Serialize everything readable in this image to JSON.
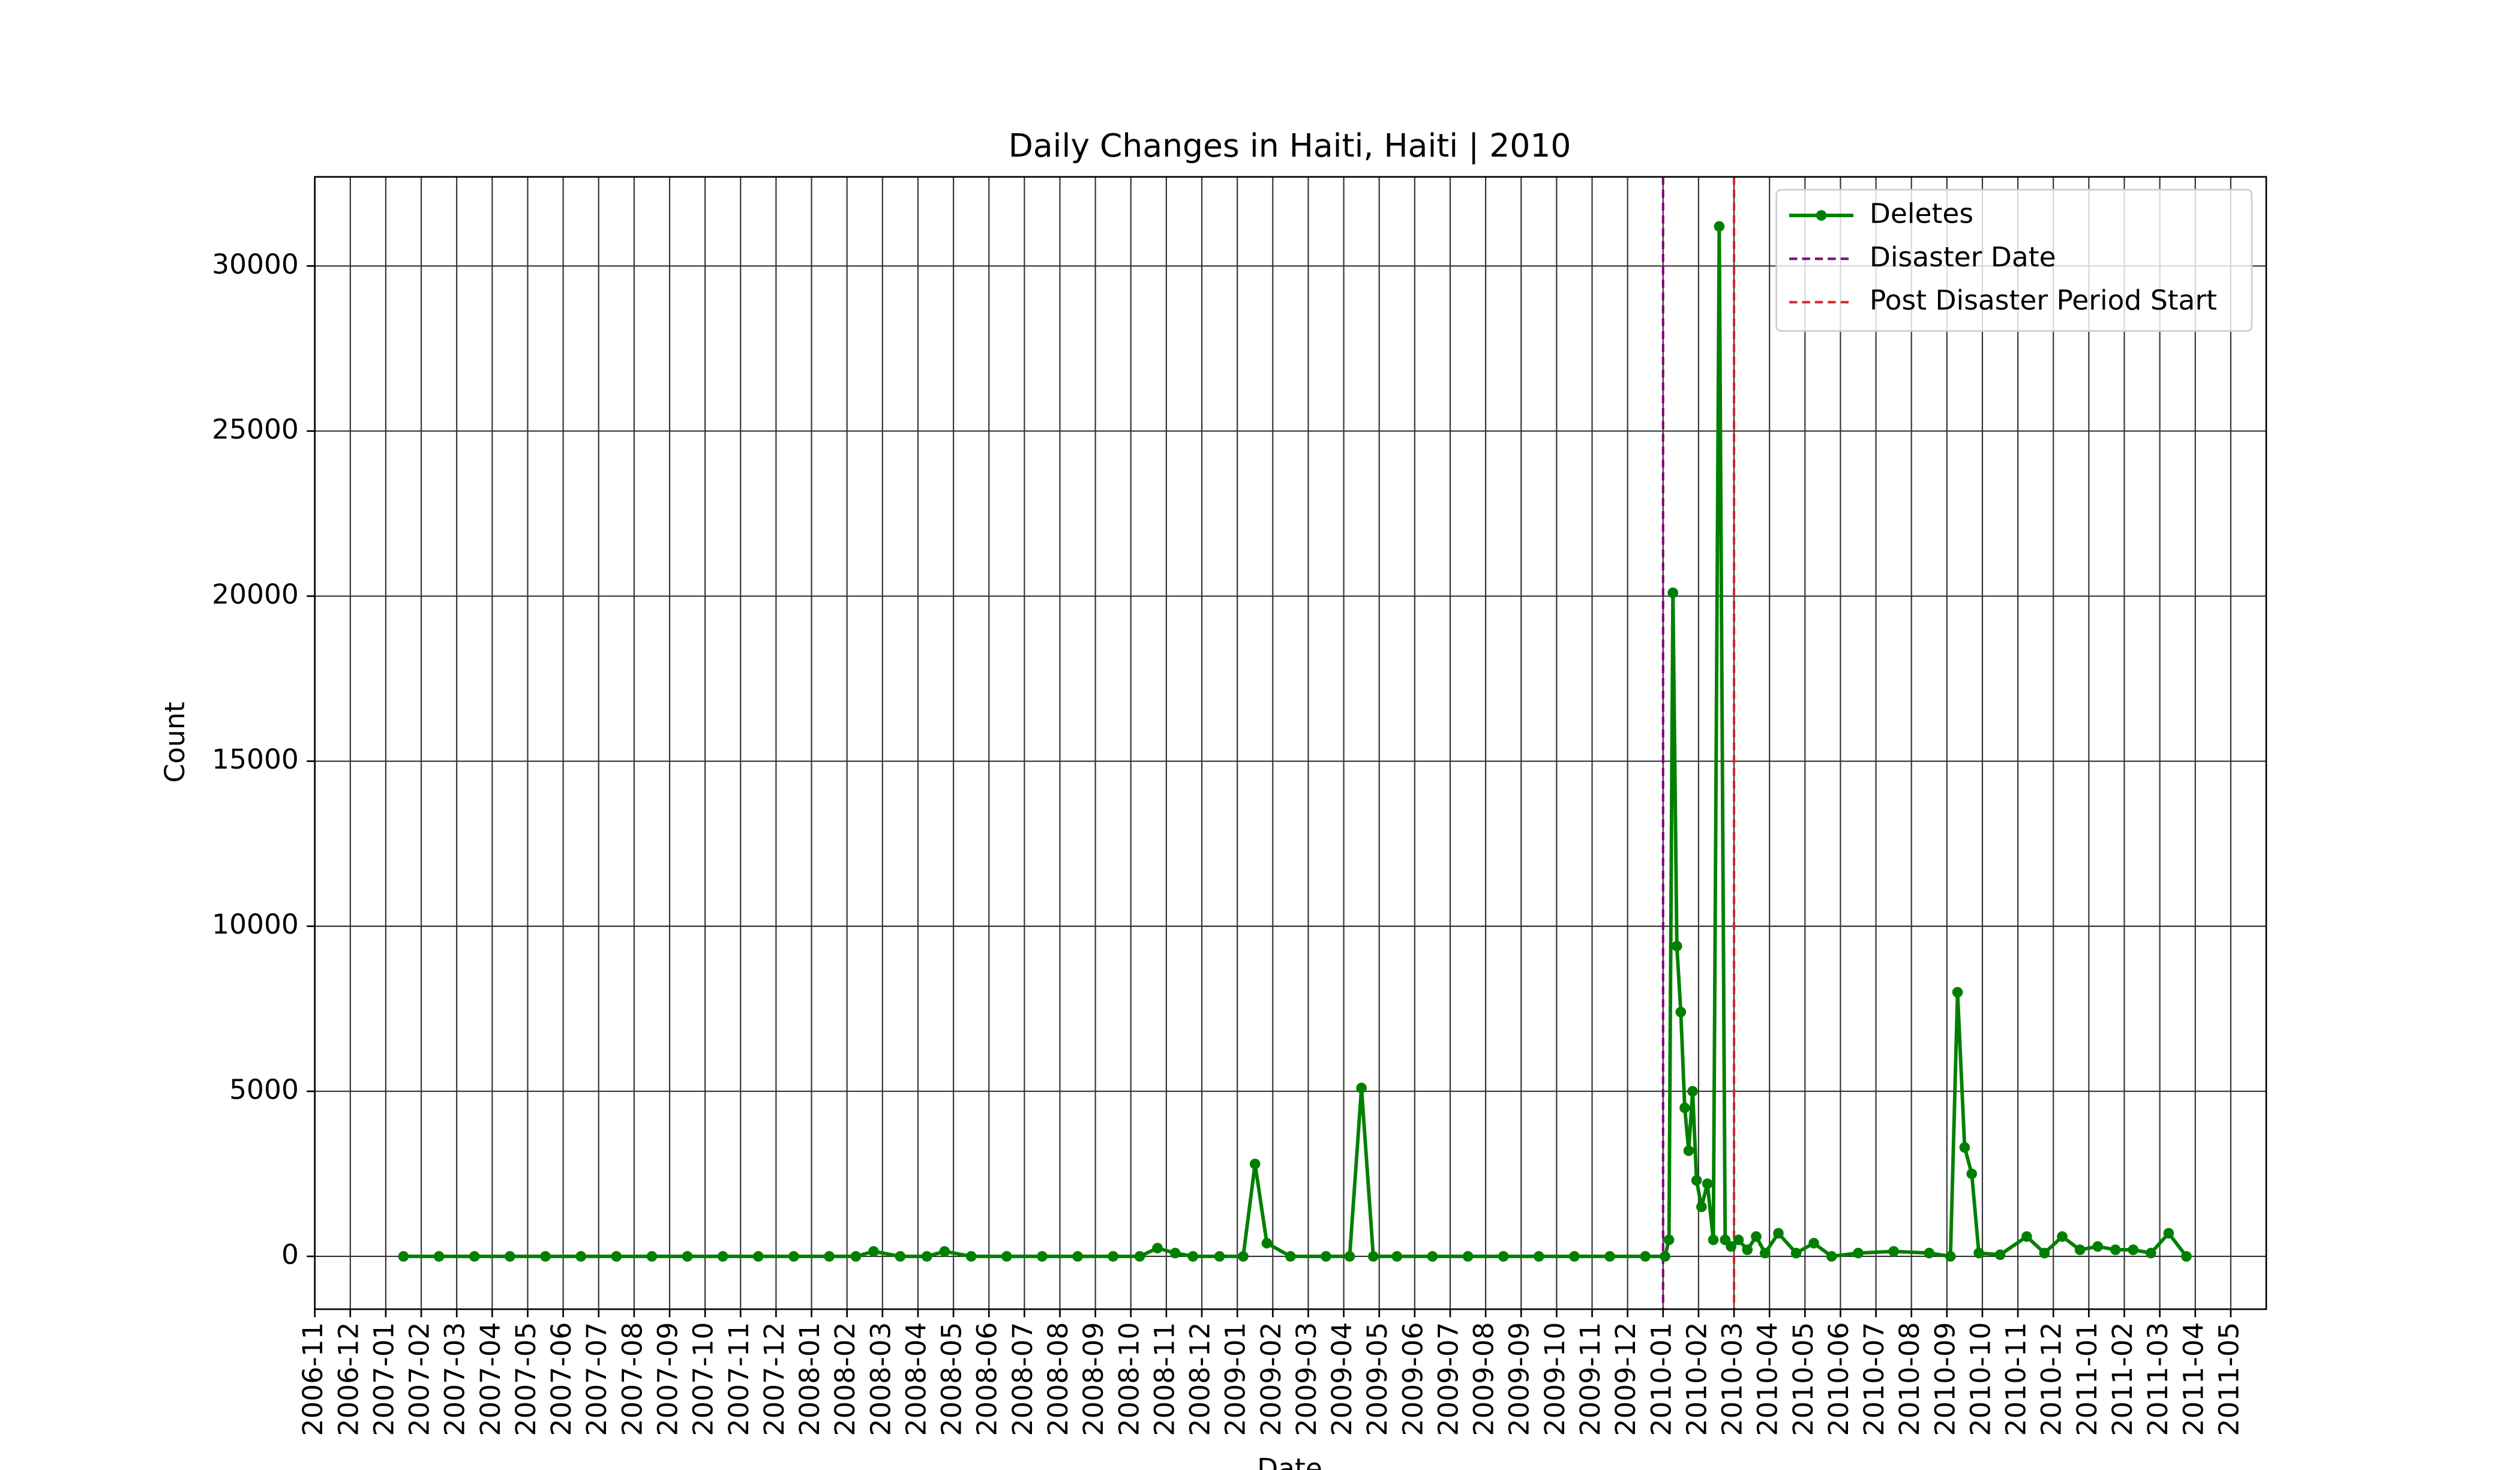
{
  "chart_data": {
    "type": "line",
    "title": "Daily Changes in Haiti, Haiti | 2010",
    "x_label": "Date",
    "y_label": "Count",
    "x": [
      "2007-01",
      "2007-02",
      "2007-03",
      "2007-04",
      "2007-05",
      "2007-06",
      "2007-07",
      "2007-08",
      "2007-09",
      "2007-10",
      "2007-11",
      "2007-12",
      "2008-01",
      "2008-02",
      "2008-02",
      "2008-03",
      "2008-04",
      "2008-04",
      "2008-05",
      "2008-06",
      "2008-07",
      "2008-08",
      "2008-09",
      "2008-10",
      "2008-10",
      "2008-11",
      "2008-11",
      "2008-12",
      "2009-01",
      "2009-01",
      "2009-01",
      "2009-02",
      "2009-03",
      "2009-04",
      "2009-04",
      "2009-04",
      "2009-05",
      "2009-06",
      "2009-07",
      "2009-08",
      "2009-09",
      "2009-10",
      "2009-11",
      "2009-12",
      "2010-01",
      "2010-01",
      "2010-01",
      "2010-01",
      "2010-01",
      "2010-01",
      "2010-01",
      "2010-01",
      "2010-01",
      "2010-02",
      "2010-02",
      "2010-02",
      "2010-02",
      "2010-02",
      "2010-02",
      "2010-03",
      "2010-03",
      "2010-03",
      "2010-03",
      "2010-04",
      "2010-04",
      "2010-05",
      "2010-05",
      "2010-06",
      "2010-07",
      "2010-08",
      "2010-09",
      "2010-09",
      "2010-09",
      "2010-09",
      "2010-09",
      "2010-10",
      "2010-11",
      "2010-11",
      "2010-12",
      "2010-12",
      "2011-01",
      "2011-01",
      "2011-02",
      "2011-02",
      "2011-03",
      "2011-03"
    ],
    "series": [
      {
        "name": "Deletes",
        "color": "#008000",
        "values": [
          0,
          0,
          0,
          0,
          0,
          0,
          0,
          0,
          0,
          0,
          0,
          0,
          0,
          0,
          150,
          0,
          0,
          150,
          0,
          0,
          0,
          0,
          0,
          0,
          250,
          100,
          0,
          0,
          0,
          2800,
          400,
          0,
          0,
          0,
          5100,
          0,
          0,
          0,
          0,
          0,
          0,
          0,
          0,
          0,
          0,
          500,
          20100,
          9400,
          7400,
          4500,
          3200,
          5000,
          2300,
          1500,
          2200,
          500,
          31200,
          500,
          300,
          500,
          200,
          600,
          100,
          700,
          100,
          400,
          0,
          100,
          150,
          100,
          0,
          8000,
          3300,
          2500,
          100,
          50,
          600,
          100,
          600,
          200,
          300,
          200,
          200,
          100,
          700,
          0
        ]
      }
    ],
    "vlines": [
      {
        "name": "Disaster Date",
        "x": "2010-01",
        "color": "#800080"
      },
      {
        "name": "Post Disaster Period Start",
        "x": "2010-03",
        "color": "#d62728"
      }
    ],
    "xlim": [
      "2006-11",
      "2011-06"
    ],
    "xticks": [
      "2006-11",
      "2006-12",
      "2007-01",
      "2007-02",
      "2007-03",
      "2007-04",
      "2007-05",
      "2007-06",
      "2007-07",
      "2007-08",
      "2007-09",
      "2007-10",
      "2007-11",
      "2007-12",
      "2008-01",
      "2008-02",
      "2008-03",
      "2008-04",
      "2008-05",
      "2008-06",
      "2008-07",
      "2008-08",
      "2008-09",
      "2008-10",
      "2008-11",
      "2008-12",
      "2009-01",
      "2009-02",
      "2009-03",
      "2009-04",
      "2009-05",
      "2009-06",
      "2009-07",
      "2009-08",
      "2009-09",
      "2009-10",
      "2009-11",
      "2009-12",
      "2010-01",
      "2010-02",
      "2010-03",
      "2010-04",
      "2010-05",
      "2010-06",
      "2010-07",
      "2010-08",
      "2010-09",
      "2010-10",
      "2010-11",
      "2010-12",
      "2011-01",
      "2011-02",
      "2011-03",
      "2011-04",
      "2011-05"
    ],
    "ylim": [
      -1600,
      32700
    ],
    "yticks": [
      0,
      5000,
      10000,
      15000,
      20000,
      25000,
      30000
    ],
    "grid": true,
    "legend": "upper right"
  }
}
